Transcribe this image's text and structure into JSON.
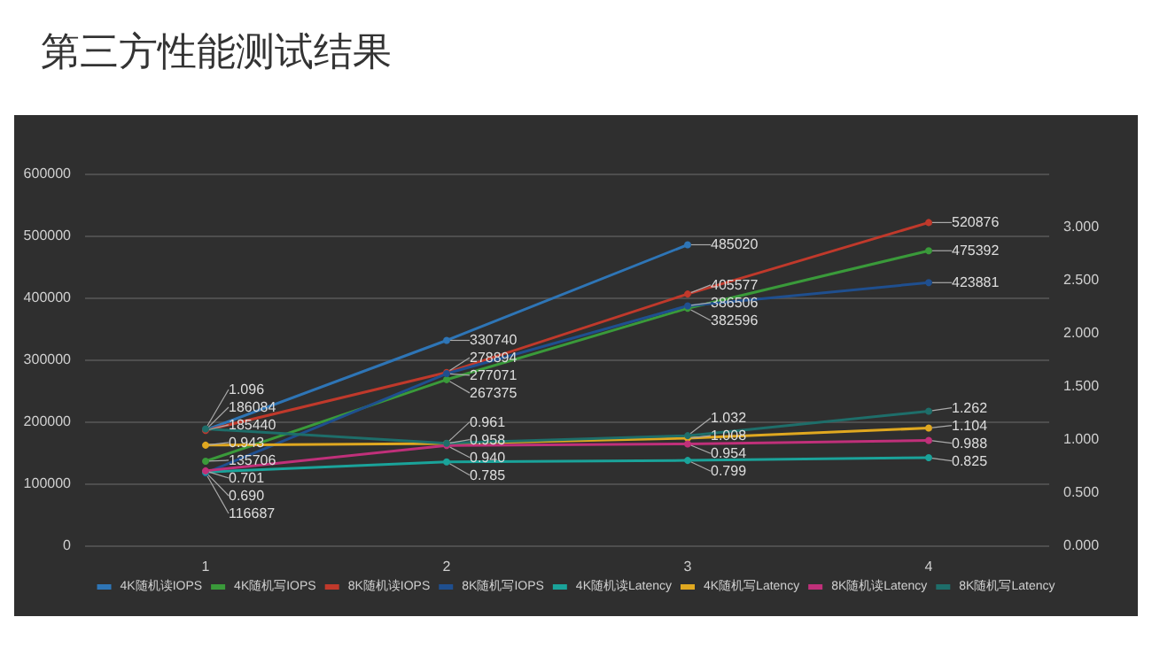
{
  "chart_data": {
    "type": "line",
    "title": "第三方性能测试结果",
    "categories": [
      "1",
      "2",
      "3",
      "4"
    ],
    "series": [
      {
        "name": "4K随机读IOPS",
        "color": "#2e75b6",
        "values": [
          186084,
          330740,
          485020,
          null
        ],
        "value_labels": [
          "186084",
          "330740",
          "485020",
          null
        ]
      },
      {
        "name": "4K随机写IOPS",
        "color": "#3a9a3a",
        "values": [
          135706,
          267375,
          382596,
          475392
        ],
        "value_labels": [
          "135706",
          "267375",
          "382596",
          "475392"
        ]
      },
      {
        "name": "8K随机读IOPS",
        "color": "#c0392b",
        "values": [
          185440,
          278894,
          405577,
          520876
        ],
        "value_labels": [
          "185440",
          "278894",
          "405577",
          "520876"
        ]
      },
      {
        "name": "8K随机写IOPS",
        "color": "#1f4f8f",
        "values": [
          116687,
          277071,
          386506,
          423881
        ],
        "value_labels": [
          "116687",
          "277071",
          "386506",
          "423881"
        ]
      },
      {
        "name": "4K随机读Latency",
        "color": "#1aa39a",
        "axis": "y2",
        "values": [
          0.69,
          0.785,
          0.799,
          0.825
        ],
        "value_labels": [
          "0.690",
          "0.785",
          "0.799",
          "0.825"
        ]
      },
      {
        "name": "4K随机写Latency",
        "color": "#e0a820",
        "axis": "y2",
        "values": [
          0.943,
          0.958,
          1.008,
          1.104
        ],
        "value_labels": [
          "0.943",
          "0.958",
          "1.008",
          "1.104"
        ]
      },
      {
        "name": "8K随机读Latency",
        "color": "#c0307a",
        "axis": "y2",
        "values": [
          0.701,
          0.94,
          0.954,
          0.988
        ],
        "value_labels": [
          "0.701",
          "0.940",
          "0.954",
          "0.988"
        ]
      },
      {
        "name": "8K随机写Latency",
        "color": "#1e6e6a",
        "axis": "y2",
        "values": [
          1.096,
          0.961,
          1.032,
          1.262
        ],
        "value_labels": [
          "1.096",
          "0.961",
          "1.032",
          "1.262"
        ]
      }
    ],
    "ylim": [
      0,
      600000
    ],
    "yticks": [
      0,
      100000,
      200000,
      300000,
      400000,
      500000,
      600000
    ],
    "y2lim": [
      0,
      3.5
    ],
    "y2ticks": [
      {
        "value": 0,
        "label": "0.000"
      },
      {
        "value": 0.5,
        "label": "0.500"
      },
      {
        "value": 1,
        "label": "1.000"
      },
      {
        "value": 1.5,
        "label": "1.500"
      },
      {
        "value": 2,
        "label": "2.000"
      },
      {
        "value": 2.5,
        "label": "2.500"
      },
      {
        "value": 3,
        "label": "3.000"
      }
    ],
    "grid": "y",
    "legend": "bottom",
    "marker": "circle",
    "line_style": "solid"
  }
}
